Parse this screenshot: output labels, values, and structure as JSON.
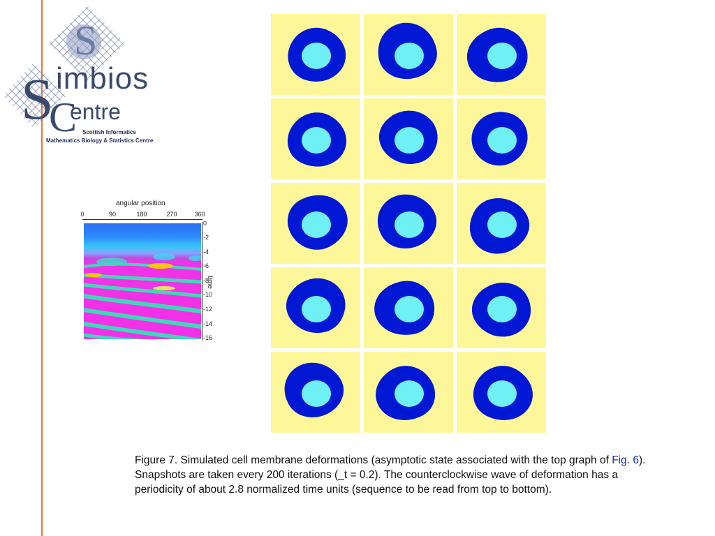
{
  "logo": {
    "word1": "imbios",
    "word2": "entre",
    "subtitle_line1": "Scottish Informatics",
    "subtitle_line2": "Mathematics Biology & Statistics Centre"
  },
  "chart_data": {
    "type": "heatmap",
    "xlabel": "angular position",
    "ylabel": "time",
    "x_ticks": [
      "0",
      "90",
      "180",
      "270",
      "360"
    ],
    "y_ticks": [
      "0",
      "-2",
      "-4",
      "-6",
      "-8",
      "-10",
      "-12",
      "-14",
      "-16"
    ],
    "xlim": [
      0,
      360
    ],
    "ylim": [
      -16,
      0
    ]
  },
  "figure": {
    "rows": 5,
    "cols": 3,
    "colors": {
      "background": "#fdf79a",
      "membrane": "#0018d4",
      "nucleus": "#6ff0f5"
    }
  },
  "caption": {
    "part1": "Figure 7. Simulated cell membrane deformations (asymptotic state associated with the top graph of ",
    "link": "Fig. 6",
    "part2": "). Snapshots are taken every 200 iterations (_t = 0.2). The counterclockwise wave of deformation has a periodicity of about 2.8 normalized time units (sequence to be read from top to bottom)."
  }
}
